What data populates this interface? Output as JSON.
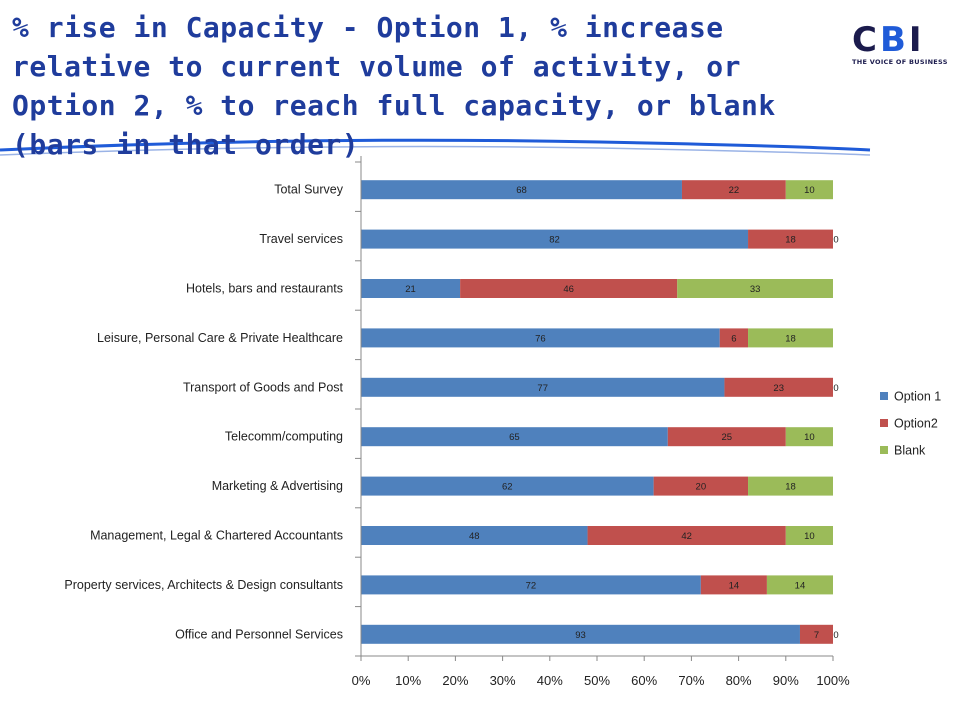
{
  "slide": {
    "title": "% rise in Capacity -  Option 1, % increase relative to current volume of activity, or Option 2, % to reach full capacity, or blank (bars in that order)"
  },
  "logo": {
    "mark": "CBI",
    "tagline": "THE VOICE OF BUSINESS"
  },
  "chart_data": {
    "type": "bar",
    "orientation": "horizontal",
    "stacked": "percent",
    "title": "",
    "xlabel": "",
    "ylabel": "",
    "xlim": [
      0,
      100
    ],
    "x_ticks": [
      "0%",
      "10%",
      "20%",
      "30%",
      "40%",
      "50%",
      "60%",
      "70%",
      "80%",
      "90%",
      "100%"
    ],
    "grid": false,
    "legend_position": "right",
    "categories": [
      "Total Survey",
      "Travel services",
      "Hotels, bars and restaurants",
      "Leisure, Personal Care & Private Healthcare",
      "Transport of Goods and Post",
      "Telecomm/computing",
      "Marketing & Advertising",
      "Management, Legal & Chartered Accountants",
      "Property services, Architects & Design consultants",
      "Office and Personnel Services"
    ],
    "series": [
      {
        "name": "Option 1",
        "color": "#4f81bd",
        "values": [
          68,
          82,
          21,
          76,
          77,
          65,
          62,
          48,
          72,
          93
        ]
      },
      {
        "name": "Option2",
        "color": "#c0504d",
        "values": [
          22,
          18,
          46,
          6,
          23,
          25,
          20,
          42,
          14,
          7
        ]
      },
      {
        "name": "Blank",
        "color": "#9bbb59",
        "values": [
          10,
          0,
          33,
          18,
          0,
          10,
          18,
          10,
          14,
          0
        ]
      }
    ]
  }
}
